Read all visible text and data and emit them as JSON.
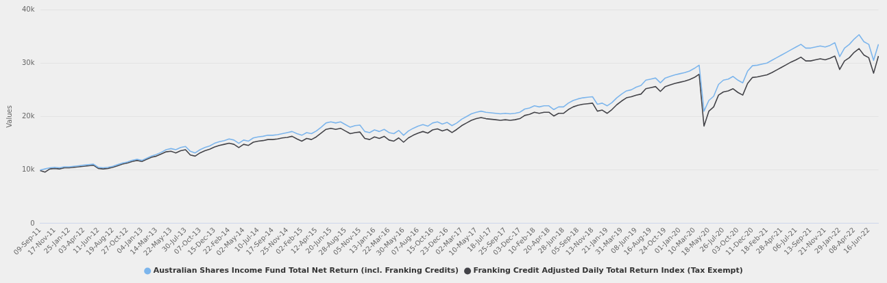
{
  "chart_data": {
    "type": "line",
    "ylabel": "Values",
    "categories": [
      "09-Sep-11",
      null,
      null,
      "17-Nov-11",
      null,
      null,
      "25-Jan-12",
      null,
      null,
      "03-Apr-12",
      null,
      null,
      "11-Jun-12",
      null,
      null,
      "19-Aug-12",
      null,
      null,
      "27-Oct-12",
      null,
      null,
      "04-Jan-13",
      null,
      null,
      "14-Mar-13",
      null,
      null,
      "22-May-13",
      null,
      null,
      "30-Jul-13",
      null,
      null,
      "07-Oct-13",
      null,
      null,
      "15-Dec-13",
      null,
      null,
      "22-Feb-14",
      null,
      null,
      "02-May-14",
      null,
      null,
      "10-Jul-14",
      null,
      null,
      "17-Sep-14",
      null,
      null,
      "25-Nov-14",
      null,
      null,
      "02-Feb-15",
      null,
      null,
      "12-Apr-15",
      null,
      null,
      "20-Jun-15",
      null,
      null,
      "28-Aug-15",
      null,
      null,
      "05-Nov-15",
      null,
      null,
      "13-Jan-16",
      null,
      null,
      "22-Mar-16",
      null,
      null,
      "30-May-16",
      null,
      null,
      "07-Aug-16",
      null,
      null,
      "15-Oct-16",
      null,
      null,
      "23-Dec-16",
      null,
      null,
      "02-Mar-17",
      null,
      null,
      "10-May-17",
      null,
      null,
      "18-Jul-17",
      null,
      null,
      "25-Sep-17",
      null,
      null,
      "03-Dec-17",
      null,
      null,
      "10-Feb-18",
      null,
      null,
      "20-Apr-18",
      null,
      null,
      "28-Jun-18",
      null,
      null,
      "05-Sep-18",
      null,
      null,
      "13-Nov-18",
      null,
      null,
      "21-Jan-19",
      null,
      null,
      "31-Mar-19",
      null,
      null,
      "08-Jun-19",
      null,
      null,
      "16-Aug-19",
      null,
      null,
      "24-Oct-19",
      null,
      null,
      "01-Jan-20",
      null,
      null,
      "10-Mar-20",
      null,
      null,
      "18-May-20",
      null,
      null,
      "26-Jul-20",
      null,
      null,
      "03-Oct-20",
      null,
      null,
      "11-Dec-20",
      null,
      null,
      "18-Feb-21",
      null,
      null,
      "28-Apr-21",
      null,
      null,
      "06-Jul-21",
      null,
      null,
      "13-Sep-21",
      null,
      null,
      "21-Nov-21",
      null,
      null,
      "29-Jan-22",
      null,
      null,
      "08-Apr-22",
      null,
      null,
      "16-Jun-22",
      null,
      null
    ],
    "series": [
      {
        "name": "Australian Shares Income Fund Total Net Return (incl. Franking Credits)",
        "color": "#7cb5ec",
        "values": [
          10000,
          10200,
          10400,
          10500,
          10400,
          10600,
          10600,
          10700,
          10800,
          10900,
          11000,
          11100,
          10500,
          10400,
          10500,
          10700,
          11000,
          11300,
          11500,
          11800,
          12000,
          11800,
          12200,
          12600,
          12900,
          13300,
          13800,
          14000,
          13800,
          14200,
          14400,
          13500,
          13200,
          13800,
          14200,
          14500,
          15000,
          15300,
          15500,
          15800,
          15600,
          15000,
          15600,
          15400,
          16000,
          16200,
          16300,
          16500,
          16500,
          16600,
          16800,
          17000,
          17200,
          16800,
          16500,
          17000,
          16800,
          17300,
          18000,
          18800,
          19000,
          18800,
          19000,
          18500,
          18000,
          18300,
          18400,
          17200,
          17000,
          17500,
          17200,
          17600,
          17000,
          16800,
          17400,
          16500,
          17300,
          17800,
          18200,
          18500,
          18200,
          18800,
          19000,
          18600,
          18900,
          18300,
          18800,
          19500,
          20000,
          20500,
          20800,
          21000,
          20800,
          20700,
          20600,
          20500,
          20600,
          20500,
          20600,
          20800,
          21400,
          21600,
          22000,
          21800,
          22000,
          22000,
          21300,
          21800,
          21800,
          22500,
          23000,
          23300,
          23500,
          23600,
          23700,
          22300,
          22500,
          22000,
          22600,
          23500,
          24200,
          24800,
          25000,
          25500,
          25800,
          26800,
          27000,
          27200,
          26300,
          27200,
          27500,
          27800,
          28000,
          28200,
          28500,
          29000,
          29600,
          21000,
          23000,
          23800,
          26000,
          26800,
          27000,
          27500,
          26800,
          26300,
          28500,
          29500,
          29600,
          29800,
          30000,
          30500,
          31000,
          31500,
          32000,
          32500,
          33000,
          33500,
          32800,
          32800,
          33000,
          33200,
          33000,
          33300,
          33800,
          31200,
          32800,
          33500,
          34500,
          35300,
          34000,
          33500,
          30500,
          33500
        ]
      },
      {
        "name": "Franking Credit Adjusted Daily Total Return Index (Tax Exempt)",
        "color": "#434348",
        "values": [
          9900,
          9600,
          10200,
          10300,
          10200,
          10400,
          10400,
          10500,
          10600,
          10700,
          10800,
          10900,
          10300,
          10200,
          10300,
          10500,
          10800,
          11100,
          11300,
          11600,
          11800,
          11600,
          12000,
          12400,
          12600,
          13000,
          13400,
          13500,
          13200,
          13600,
          13800,
          12800,
          12600,
          13200,
          13600,
          13900,
          14300,
          14600,
          14800,
          15000,
          14800,
          14200,
          14800,
          14600,
          15200,
          15400,
          15500,
          15700,
          15700,
          15800,
          16000,
          16100,
          16300,
          15800,
          15400,
          15900,
          15700,
          16200,
          16900,
          17600,
          17800,
          17600,
          17800,
          17300,
          16800,
          17000,
          17100,
          15900,
          15700,
          16200,
          15900,
          16300,
          15600,
          15400,
          16000,
          15200,
          16000,
          16500,
          16900,
          17200,
          16900,
          17500,
          17700,
          17300,
          17600,
          17000,
          17600,
          18300,
          18800,
          19300,
          19600,
          19800,
          19600,
          19500,
          19400,
          19300,
          19400,
          19300,
          19400,
          19600,
          20200,
          20400,
          20800,
          20600,
          20800,
          20800,
          20100,
          20600,
          20600,
          21300,
          21800,
          22100,
          22300,
          22400,
          22500,
          21000,
          21200,
          20600,
          21300,
          22200,
          22900,
          23500,
          23700,
          24000,
          24200,
          25200,
          25400,
          25600,
          24700,
          25600,
          25900,
          26200,
          26400,
          26600,
          26900,
          27300,
          27900,
          18200,
          21000,
          21800,
          24000,
          24600,
          24800,
          25200,
          24500,
          24000,
          26200,
          27300,
          27400,
          27600,
          27800,
          28200,
          28700,
          29200,
          29700,
          30200,
          30600,
          31100,
          30400,
          30400,
          30600,
          30800,
          30600,
          30900,
          31300,
          28800,
          30400,
          31000,
          32000,
          32700,
          31500,
          31000,
          28100,
          31300
        ]
      }
    ],
    "ylim": [
      0,
      40000
    ],
    "yticks": [
      {
        "value": 0,
        "label": "0"
      },
      {
        "value": 10000,
        "label": "10k"
      },
      {
        "value": 20000,
        "label": "20k"
      },
      {
        "value": 30000,
        "label": "30k"
      },
      {
        "value": 40000,
        "label": "40k"
      }
    ],
    "grid": "y",
    "legend": "bottom",
    "marker": "none",
    "line_style": "solid"
  }
}
